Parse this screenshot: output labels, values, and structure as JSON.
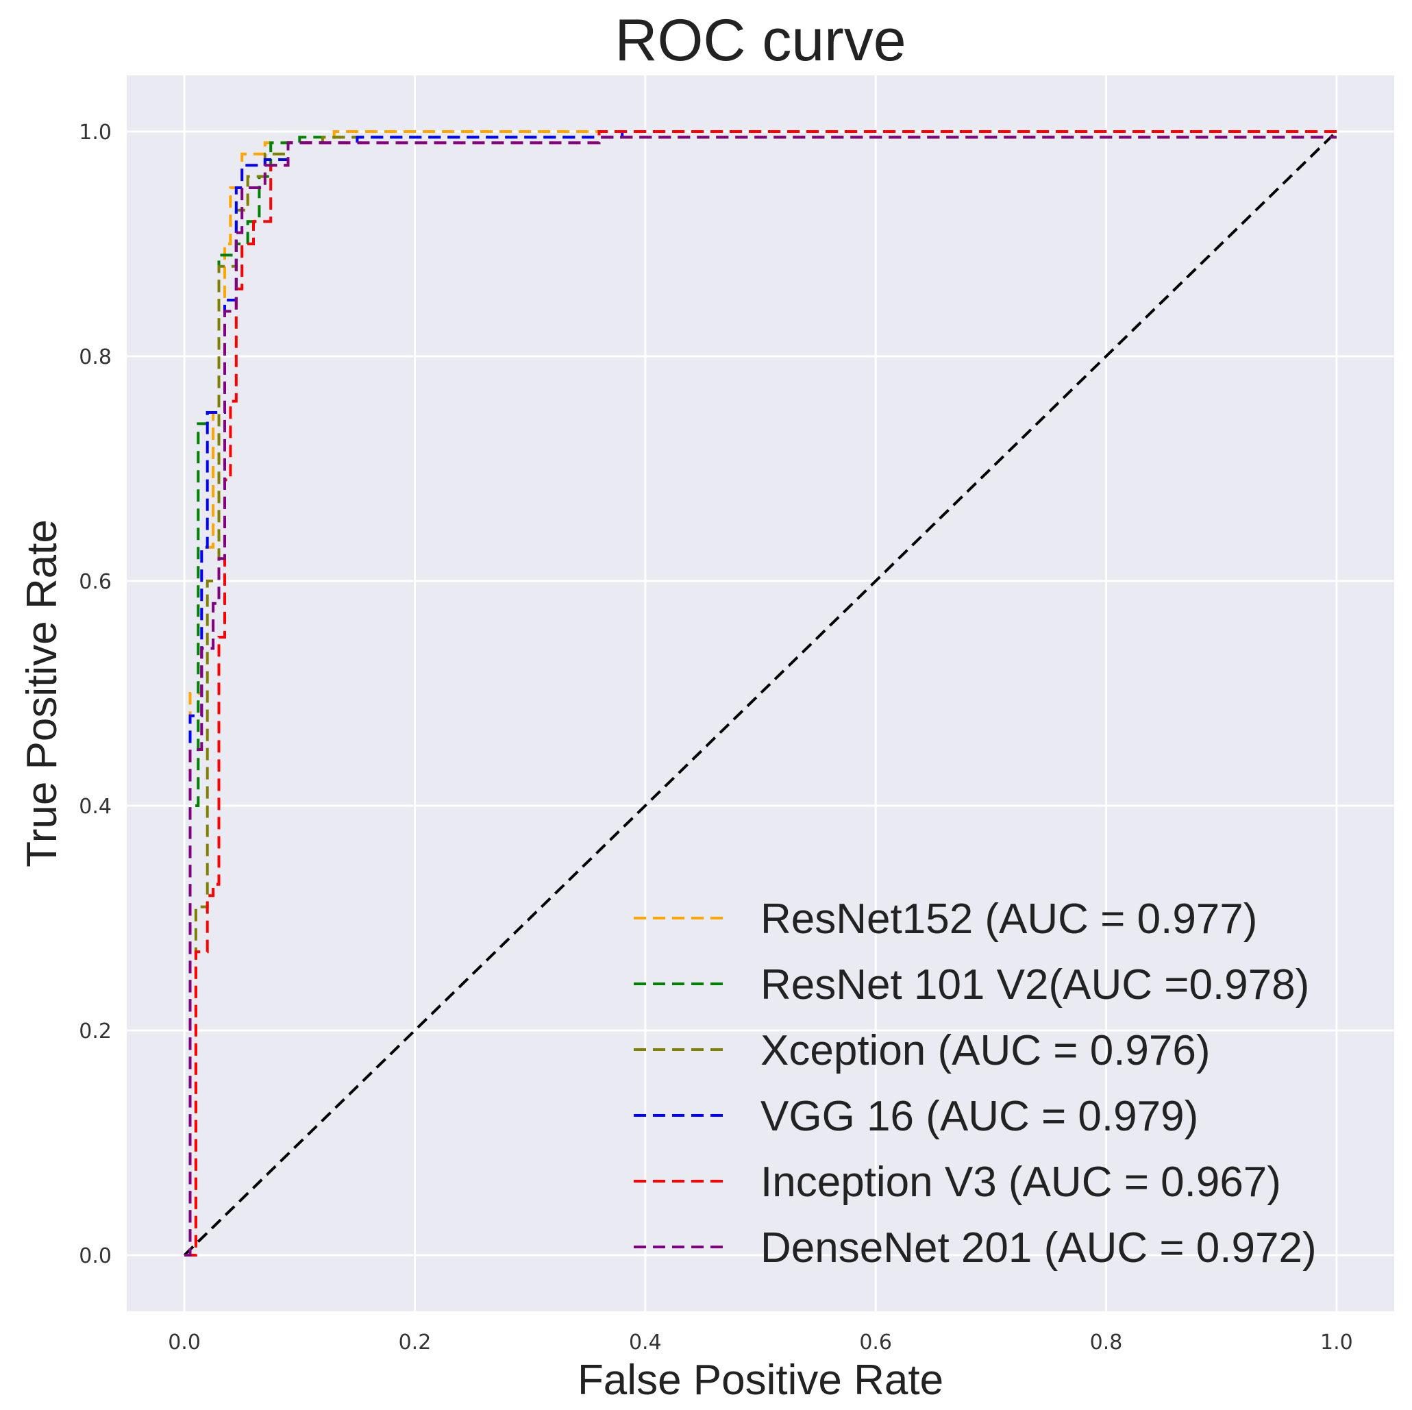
{
  "chart_data": {
    "type": "line",
    "title": "ROC curve",
    "xlabel": "False Positive Rate",
    "ylabel": "True Positive Rate",
    "xlim": [
      -0.05,
      1.05
    ],
    "ylim": [
      -0.05,
      1.05
    ],
    "grid": true,
    "legend_position": "bottom-right",
    "xticks": [
      0.0,
      0.2,
      0.4,
      0.6,
      0.8,
      1.0
    ],
    "xtick_labels": [
      "0.0",
      "0.2",
      "0.4",
      "0.6",
      "0.8",
      "1.0"
    ],
    "yticks": [
      0.0,
      0.2,
      0.4,
      0.6,
      0.8,
      1.0
    ],
    "ytick_labels": [
      "0.0",
      "0.2",
      "0.4",
      "0.6",
      "0.8",
      "1.0"
    ],
    "reference_line": {
      "name": "chance",
      "color": "#000000",
      "x": [
        0,
        1
      ],
      "y": [
        0,
        1
      ]
    },
    "series": [
      {
        "name": "ResNet152 (AUC = 0.977)",
        "color": "#ffa500",
        "x": [
          0,
          0.005,
          0.005,
          0.015,
          0.015,
          0.025,
          0.025,
          0.03,
          0.03,
          0.035,
          0.035,
          0.04,
          0.04,
          0.05,
          0.05,
          0.07,
          0.07,
          0.13,
          0.13,
          1.0
        ],
        "y": [
          0,
          0,
          0.5,
          0.5,
          0.63,
          0.63,
          0.75,
          0.75,
          0.85,
          0.85,
          0.9,
          0.9,
          0.95,
          0.95,
          0.98,
          0.98,
          0.99,
          0.99,
          1.0,
          1.0
        ]
      },
      {
        "name": "ResNet 101 V2(AUC =0.978)",
        "color": "#008000",
        "x": [
          0,
          0.005,
          0.005,
          0.012,
          0.012,
          0.02,
          0.02,
          0.03,
          0.03,
          0.045,
          0.045,
          0.055,
          0.055,
          0.065,
          0.065,
          0.075,
          0.075,
          0.1,
          0.1,
          1.0
        ],
        "y": [
          0,
          0,
          0.4,
          0.4,
          0.74,
          0.74,
          0.75,
          0.75,
          0.89,
          0.89,
          0.9,
          0.9,
          0.92,
          0.92,
          0.96,
          0.96,
          0.99,
          0.99,
          0.995,
          0.995
        ]
      },
      {
        "name": "Xception (AUC = 0.976)",
        "color": "#808000",
        "x": [
          0,
          0.01,
          0.01,
          0.02,
          0.02,
          0.03,
          0.03,
          0.045,
          0.045,
          0.055,
          0.055,
          0.07,
          0.07,
          0.09,
          0.09,
          0.12,
          0.12,
          1.0
        ],
        "y": [
          0,
          0,
          0.31,
          0.31,
          0.6,
          0.6,
          0.88,
          0.88,
          0.93,
          0.93,
          0.96,
          0.96,
          0.98,
          0.98,
          0.99,
          0.99,
          0.995,
          0.995
        ]
      },
      {
        "name": "VGG 16 (AUC = 0.979)",
        "color": "#0000ff",
        "x": [
          0,
          0.005,
          0.005,
          0.015,
          0.015,
          0.02,
          0.02,
          0.035,
          0.035,
          0.045,
          0.045,
          0.05,
          0.05,
          0.07,
          0.07,
          0.09,
          0.09,
          0.15,
          0.15,
          0.38,
          0.38,
          1.0
        ],
        "y": [
          0,
          0,
          0.48,
          0.48,
          0.63,
          0.63,
          0.75,
          0.75,
          0.85,
          0.85,
          0.95,
          0.95,
          0.97,
          0.97,
          0.975,
          0.975,
          0.99,
          0.99,
          0.995,
          0.995,
          1.0,
          1.0
        ]
      },
      {
        "name": "Inception V3 (AUC = 0.967)",
        "color": "#ff0000",
        "x": [
          0,
          0.01,
          0.01,
          0.02,
          0.02,
          0.025,
          0.025,
          0.03,
          0.03,
          0.035,
          0.035,
          0.04,
          0.04,
          0.045,
          0.045,
          0.05,
          0.05,
          0.06,
          0.06,
          0.075,
          0.075,
          0.09,
          0.09,
          0.36,
          0.36,
          1.0
        ],
        "y": [
          0,
          0,
          0.27,
          0.27,
          0.32,
          0.32,
          0.33,
          0.33,
          0.55,
          0.55,
          0.69,
          0.69,
          0.76,
          0.76,
          0.86,
          0.86,
          0.9,
          0.9,
          0.92,
          0.92,
          0.97,
          0.97,
          0.99,
          0.99,
          1.0,
          1.0
        ]
      },
      {
        "name": "DenseNet 201 (AUC = 0.972)",
        "color": "#800080",
        "x": [
          0,
          0.005,
          0.005,
          0.015,
          0.015,
          0.025,
          0.025,
          0.03,
          0.03,
          0.035,
          0.035,
          0.045,
          0.045,
          0.05,
          0.05,
          0.07,
          0.07,
          0.09,
          0.09,
          0.36,
          0.36,
          1.0
        ],
        "y": [
          0,
          0,
          0.45,
          0.45,
          0.54,
          0.54,
          0.58,
          0.58,
          0.62,
          0.62,
          0.84,
          0.84,
          0.91,
          0.91,
          0.95,
          0.95,
          0.97,
          0.97,
          0.99,
          0.99,
          0.995,
          0.995
        ]
      }
    ]
  }
}
